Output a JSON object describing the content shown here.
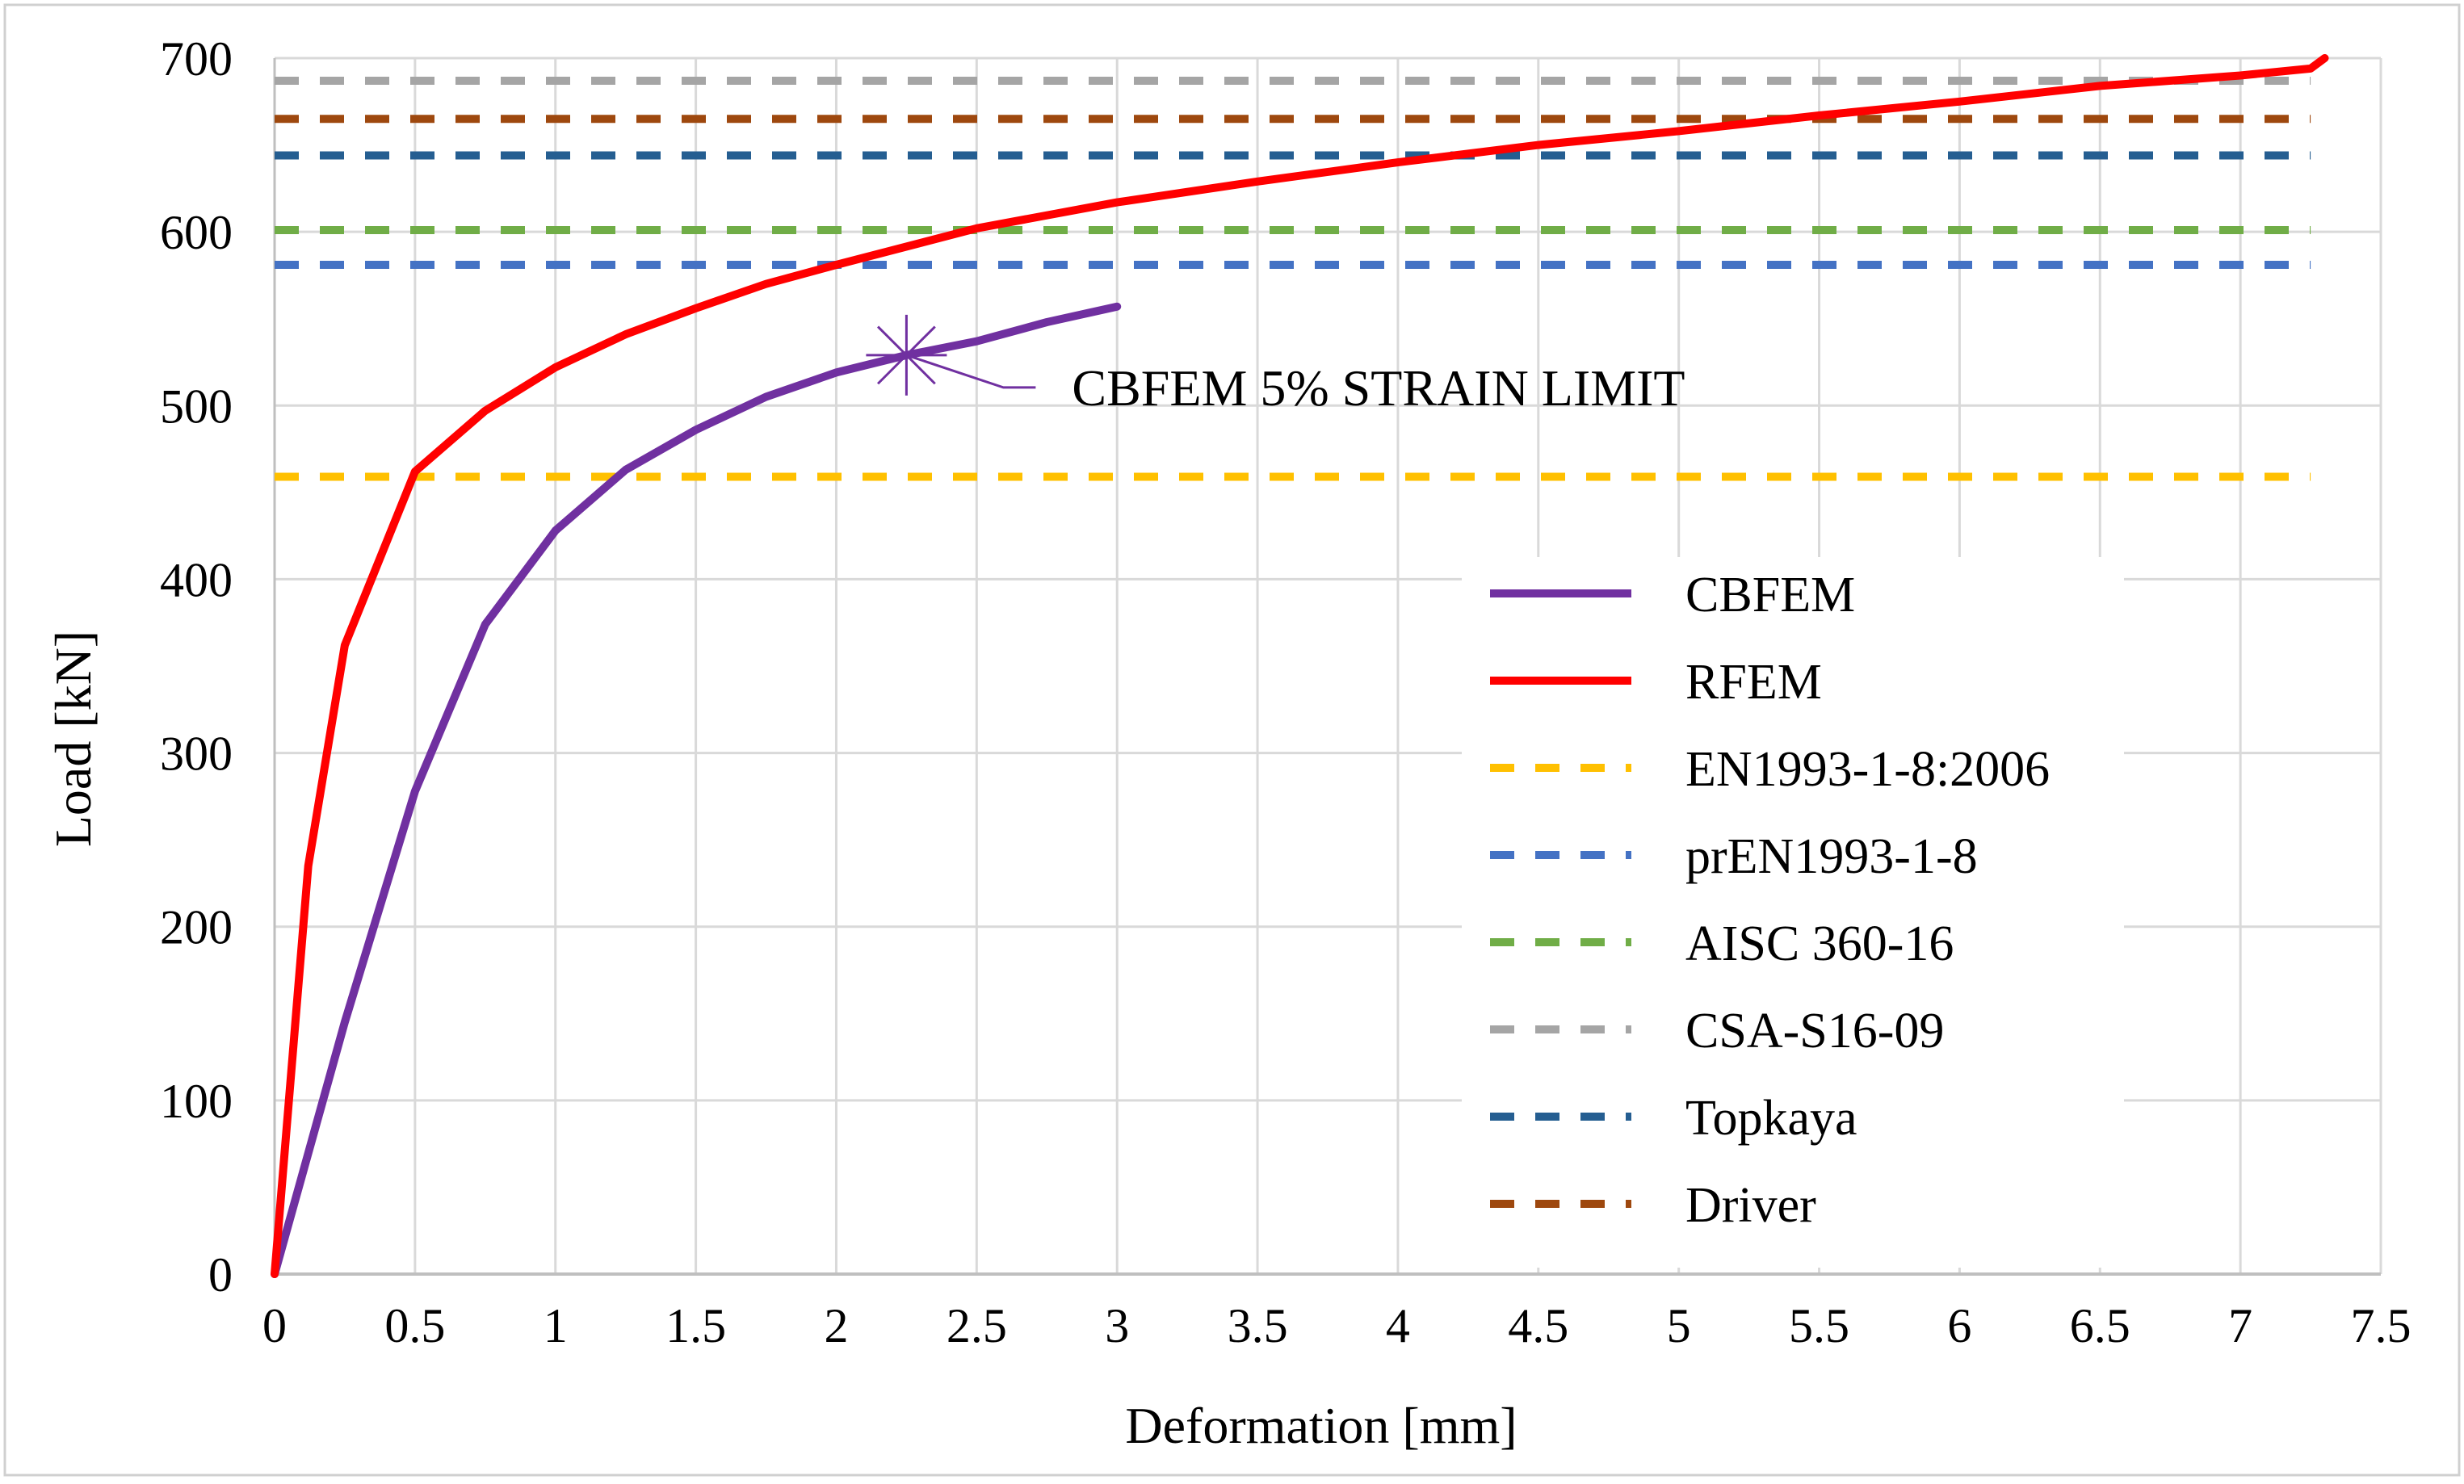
{
  "chart_data": {
    "type": "line",
    "title": "",
    "xlabel": "Deformation [mm]",
    "ylabel": "Load [kN]",
    "xlim": [
      0,
      7.5
    ],
    "ylim": [
      0,
      700
    ],
    "x_ticks": [
      "0",
      "0.5",
      "1",
      "1.5",
      "2",
      "2.5",
      "3",
      "3.5",
      "4",
      "4.5",
      "5",
      "5.5",
      "6",
      "6.5",
      "7",
      "7.5"
    ],
    "x_tick_values": [
      0,
      0.5,
      1,
      1.5,
      2,
      2.5,
      3,
      3.5,
      4,
      4.5,
      5,
      5.5,
      6,
      6.5,
      7,
      7.5
    ],
    "y_ticks": [
      "0",
      "100",
      "200",
      "300",
      "400",
      "500",
      "600",
      "700"
    ],
    "y_tick_values": [
      0,
      100,
      200,
      300,
      400,
      500,
      600,
      700
    ],
    "grid": true,
    "legend_position": "right",
    "series": [
      {
        "name": "CBFEM",
        "style": "solid",
        "color": "#7030A0",
        "x": [
          0,
          0.25,
          0.5,
          0.75,
          1.0,
          1.25,
          1.5,
          1.75,
          2.0,
          2.25,
          2.5,
          2.75,
          3.0
        ],
        "y": [
          0,
          145,
          278,
          374,
          428,
          463,
          486,
          505,
          519,
          529,
          537,
          548,
          557
        ]
      },
      {
        "name": "RFEM",
        "style": "solid",
        "color": "#FF0000",
        "x": [
          0,
          0.12,
          0.25,
          0.5,
          0.75,
          1.0,
          1.25,
          1.5,
          1.75,
          2.0,
          2.5,
          3.0,
          3.5,
          4.0,
          4.5,
          5.0,
          5.5,
          6.0,
          6.5,
          7.0,
          7.25,
          7.3
        ],
        "y": [
          0,
          235,
          362,
          462,
          497,
          522,
          541,
          556,
          570,
          581,
          602,
          617,
          629,
          640,
          650,
          658,
          667,
          675,
          684,
          690,
          694,
          700
        ]
      },
      {
        "name": "EN1993-1-8:2006",
        "style": "dashed",
        "color": "#FFC000",
        "value": 459
      },
      {
        "name": "prEN1993-1-8",
        "style": "dashed",
        "color": "#4472C4",
        "value": 581
      },
      {
        "name": "AISC 360-16",
        "style": "dashed",
        "color": "#70AD47",
        "value": 601
      },
      {
        "name": "CSA-S16-09",
        "style": "dashed",
        "color": "#A5A5A5",
        "value": 687
      },
      {
        "name": "Topkaya",
        "style": "dashed",
        "color": "#255E91",
        "value": 644
      },
      {
        "name": "Driver",
        "style": "dashed",
        "color": "#9E480E",
        "value": 665
      }
    ],
    "annotations": [
      {
        "text": "CBFEM 5% STRAIN LIMIT",
        "x": 2.25,
        "y": 529,
        "marker": "asterisk",
        "color": "#7030A0"
      }
    ]
  }
}
